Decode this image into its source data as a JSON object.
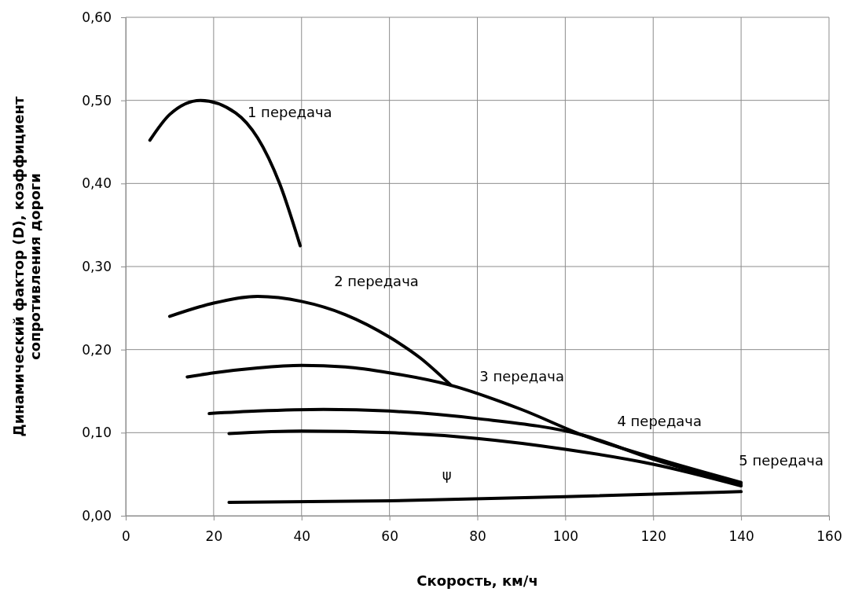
{
  "chart_data": {
    "type": "line",
    "xlabel": "Скорость,  км/ч",
    "ylabel": "Динамический  фактор (D), коэффициент\nсопротивления  дороги",
    "xlim": [
      0,
      160
    ],
    "xticks": [
      0,
      20,
      40,
      60,
      80,
      100,
      120,
      140,
      160
    ],
    "ylim": [
      0,
      0.6
    ],
    "yticks": [
      {
        "value": 0,
        "label": "0,00"
      },
      {
        "value": 0.1,
        "label": "0,10"
      },
      {
        "value": 0.2,
        "label": "0,20"
      },
      {
        "value": 0.3,
        "label": "0,30"
      },
      {
        "value": 0.4,
        "label": "0,40"
      },
      {
        "value": 0.5,
        "label": "0,50"
      },
      {
        "value": 0.6,
        "label": "0,60"
      }
    ],
    "grid": true,
    "marker": "none",
    "line_style": "solid",
    "series": [
      {
        "name": "1 передача",
        "color": "#000000",
        "x": [
          5.5,
          10,
          17,
          25,
          30,
          35,
          39.7
        ],
        "values": [
          0.452,
          0.483,
          0.5,
          0.485,
          0.455,
          0.4,
          0.325
        ]
      },
      {
        "name": "2 передача",
        "color": "#000000",
        "x": [
          10,
          20,
          30,
          40,
          50,
          60,
          67,
          74
        ],
        "values": [
          0.24,
          0.256,
          0.264,
          0.258,
          0.242,
          0.215,
          0.19,
          0.157
        ]
      },
      {
        "name": "3 передача",
        "color": "#000000",
        "x": [
          14,
          20,
          30,
          40,
          50,
          60,
          74,
          90,
          104,
          120,
          140
        ],
        "values": [
          0.167,
          0.172,
          0.178,
          0.181,
          0.179,
          0.172,
          0.157,
          0.128,
          0.097,
          0.07,
          0.04
        ]
      },
      {
        "name": "4 передача",
        "color": "#000000",
        "x": [
          19,
          30,
          45,
          60,
          80,
          104,
          120,
          140
        ],
        "values": [
          0.123,
          0.126,
          0.128,
          0.126,
          0.117,
          0.097,
          0.068,
          0.038
        ]
      },
      {
        "name": "5 передача",
        "color": "#000000",
        "x": [
          23.5,
          40,
          60,
          80,
          100,
          120,
          140
        ],
        "values": [
          0.099,
          0.102,
          0.1,
          0.093,
          0.08,
          0.062,
          0.036
        ]
      },
      {
        "name": "ψ",
        "color": "#000000",
        "x": [
          23.5,
          60,
          100,
          140
        ],
        "values": [
          0.016,
          0.018,
          0.023,
          0.029
        ]
      }
    ]
  }
}
